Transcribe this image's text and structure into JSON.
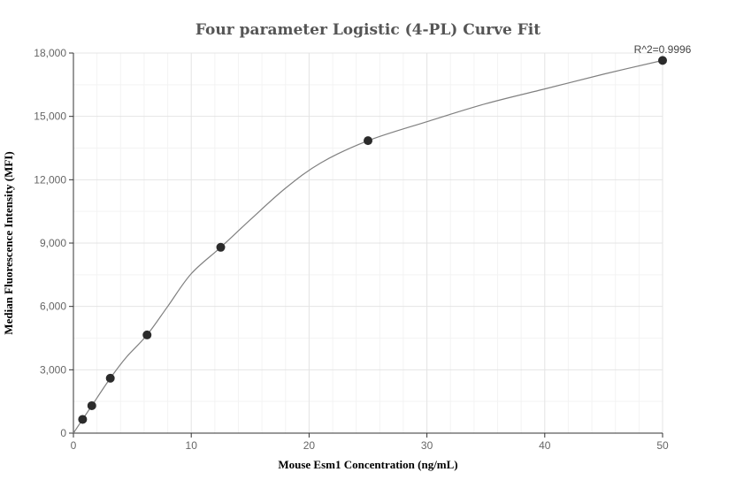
{
  "chart_data": {
    "type": "scatter",
    "title": "Four parameter Logistic (4-PL) Curve Fit",
    "xlabel": "Mouse Esm1 Concentration (ng/mL)",
    "ylabel": "Median Fluorescence Intensity (MFI)",
    "xlim": [
      0,
      50
    ],
    "ylim": [
      0,
      18000
    ],
    "x_ticks": [
      0,
      10,
      20,
      30,
      40,
      50
    ],
    "x_tick_labels": [
      "0",
      "10",
      "20",
      "30",
      "40",
      "50"
    ],
    "y_ticks": [
      0,
      3000,
      6000,
      9000,
      12000,
      15000,
      18000
    ],
    "y_tick_labels": [
      "0",
      "3,000",
      "6,000",
      "9,000",
      "12,000",
      "15,000",
      "18,000"
    ],
    "grid": true,
    "points": {
      "x": [
        0.78,
        1.56,
        3.13,
        6.25,
        12.5,
        25,
        50
      ],
      "y": [
        650,
        1300,
        2600,
        4650,
        8800,
        13850,
        17650
      ]
    },
    "fit_curve": {
      "x": [
        0,
        0.78,
        1.56,
        3.13,
        4.5,
        6.25,
        8,
        10,
        12.5,
        15,
        18,
        21,
        25,
        30,
        35,
        40,
        45,
        50
      ],
      "y": [
        0,
        650,
        1300,
        2600,
        3600,
        4650,
        6000,
        7550,
        8800,
        10100,
        11600,
        12800,
        13850,
        14750,
        15600,
        16300,
        17000,
        17650
      ]
    },
    "annotation": "R^2=0.9996"
  }
}
